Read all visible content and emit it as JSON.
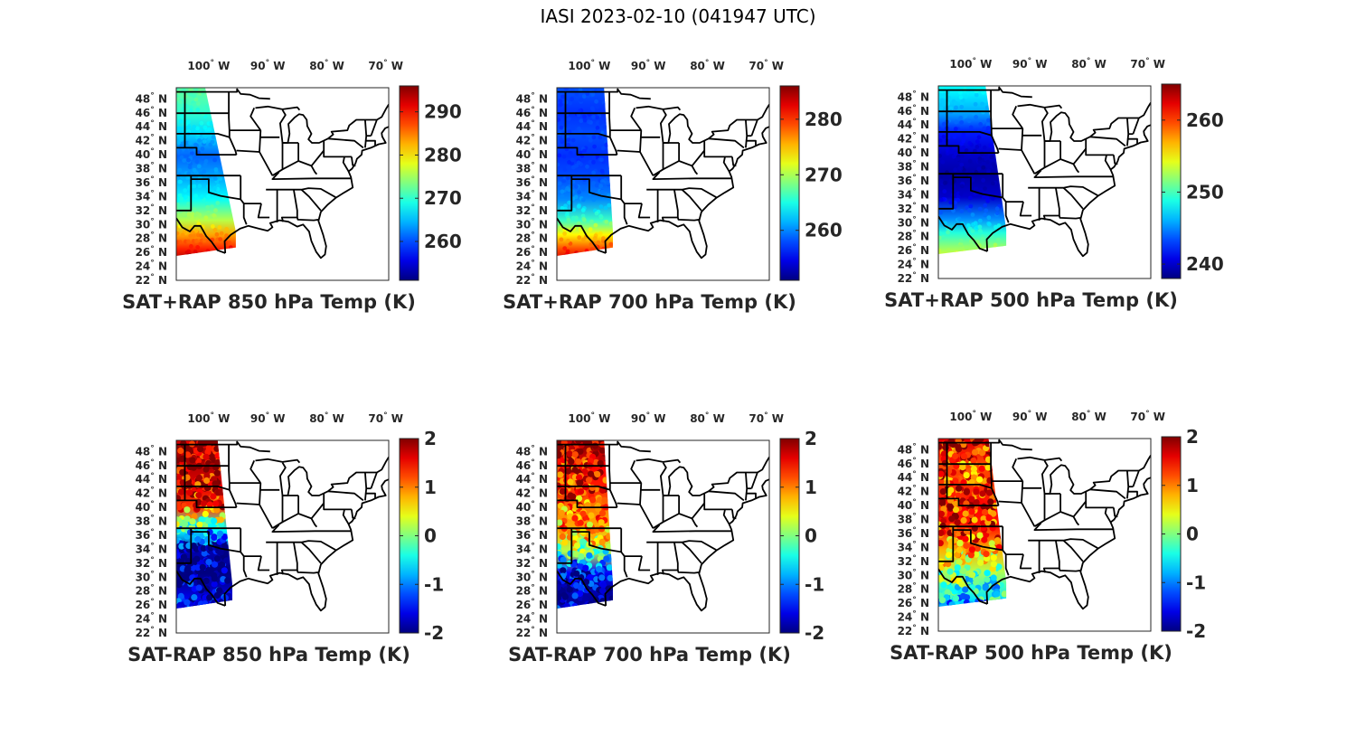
{
  "figure_title": "IASI 2023-02-10 (041947 UTC)",
  "chart_data": [
    {
      "type": "map",
      "id": "p1",
      "title": "SAT+RAP 850 hPa Temp (K)",
      "colormap": "jet",
      "clim": [
        251,
        296
      ],
      "colorbar_ticks": [
        "260",
        "270",
        "280",
        "290"
      ],
      "colorbar_tick_values": [
        260,
        270,
        280,
        290
      ],
      "lon_ticks": [
        "100° W",
        "90° W",
        "80° W",
        "70° W"
      ],
      "lat_ticks": [
        "48° N",
        "46° N",
        "44° N",
        "42° N",
        "40° N",
        "38° N",
        "36° N",
        "34° N",
        "32° N",
        "30° N",
        "28° N",
        "26° N",
        "24° N",
        "22° N"
      ],
      "swath_lon_east_north": -100.6,
      "swath_lon_east_south": -95.4,
      "swath_lat_south": 25.5,
      "field": [
        {
          "lat": 49,
          "value": 272
        },
        {
          "lat": 46,
          "value": 270
        },
        {
          "lat": 43,
          "value": 266
        },
        {
          "lat": 40,
          "value": 261
        },
        {
          "lat": 37,
          "value": 264
        },
        {
          "lat": 34,
          "value": 268
        },
        {
          "lat": 31,
          "value": 276
        },
        {
          "lat": 29,
          "value": 283
        },
        {
          "lat": 27,
          "value": 289
        },
        {
          "lat": 25.5,
          "value": 294
        }
      ]
    },
    {
      "type": "map",
      "id": "p2",
      "title": "SAT+RAP 700 hPa Temp (K)",
      "colormap": "jet",
      "clim": [
        251,
        286
      ],
      "colorbar_ticks": [
        "260",
        "270",
        "280"
      ],
      "colorbar_tick_values": [
        260,
        270,
        280
      ],
      "lon_ticks": [
        "100° W",
        "90° W",
        "80° W",
        "70° W"
      ],
      "lat_ticks": [
        "48° N",
        "46° N",
        "44° N",
        "42° N",
        "40° N",
        "38° N",
        "36° N",
        "34° N",
        "32° N",
        "30° N",
        "28° N",
        "26° N",
        "24° N",
        "22° N"
      ],
      "swath_lon_east_north": -97.5,
      "swath_lon_east_south": -96.0,
      "swath_lat_south": 25.5,
      "field": [
        {
          "lat": 49,
          "value": 258
        },
        {
          "lat": 46,
          "value": 257
        },
        {
          "lat": 43,
          "value": 258
        },
        {
          "lat": 40,
          "value": 257
        },
        {
          "lat": 37,
          "value": 258
        },
        {
          "lat": 34,
          "value": 260
        },
        {
          "lat": 31,
          "value": 266
        },
        {
          "lat": 29,
          "value": 273
        },
        {
          "lat": 27,
          "value": 279
        },
        {
          "lat": 25.5,
          "value": 283
        }
      ]
    },
    {
      "type": "map",
      "id": "p3",
      "title": "SAT+RAP 500 hPa Temp (K)",
      "colormap": "jet",
      "clim": [
        238,
        265
      ],
      "colorbar_ticks": [
        "240",
        "250",
        "260"
      ],
      "colorbar_tick_values": [
        240,
        250,
        260
      ],
      "lon_ticks": [
        "100° W",
        "90° W",
        "80° W",
        "70° W"
      ],
      "lat_ticks": [
        "48° N",
        "46° N",
        "44° N",
        "42° N",
        "40° N",
        "38° N",
        "36° N",
        "34° N",
        "32° N",
        "30° N",
        "28° N",
        "26° N",
        "24° N",
        "22° N"
      ],
      "swath_lon_east_north": -97.5,
      "swath_lon_east_south": -94.0,
      "swath_lat_south": 25.5,
      "field": [
        {
          "lat": 49,
          "value": 248
        },
        {
          "lat": 46,
          "value": 246
        },
        {
          "lat": 43,
          "value": 242
        },
        {
          "lat": 40,
          "value": 240
        },
        {
          "lat": 37,
          "value": 239
        },
        {
          "lat": 34,
          "value": 240
        },
        {
          "lat": 31,
          "value": 245
        },
        {
          "lat": 29,
          "value": 249
        },
        {
          "lat": 27,
          "value": 252
        },
        {
          "lat": 25.5,
          "value": 254
        }
      ]
    },
    {
      "type": "map",
      "id": "p4",
      "title": "SAT-RAP 850 hPa Temp (K)",
      "colormap": "jet",
      "clim": [
        -2,
        2
      ],
      "colorbar_ticks": [
        "2",
        "1",
        "0",
        "-1",
        "-2"
      ],
      "colorbar_tick_values": [
        2,
        1,
        0,
        -1,
        -2
      ],
      "lon_ticks": [
        "100° W",
        "90° W",
        "80° W",
        "70° W"
      ],
      "lat_ticks": [
        "48° N",
        "46° N",
        "44° N",
        "42° N",
        "40° N",
        "38° N",
        "36° N",
        "34° N",
        "32° N",
        "30° N",
        "28° N",
        "26° N",
        "24° N",
        "22° N"
      ],
      "swath_lon_east_north": -98.5,
      "swath_lon_east_south": -96.0,
      "swath_lat_south": 25.5,
      "field": [
        {
          "lat": 49,
          "value": 2
        },
        {
          "lat": 46,
          "value": 1.8
        },
        {
          "lat": 43,
          "value": 1.6
        },
        {
          "lat": 40,
          "value": 1.2
        },
        {
          "lat": 37,
          "value": -0.5
        },
        {
          "lat": 34,
          "value": -1.8
        },
        {
          "lat": 31,
          "value": -2
        },
        {
          "lat": 29,
          "value": -1.8
        },
        {
          "lat": 27,
          "value": -1.5
        },
        {
          "lat": 25.5,
          "value": -1.7
        }
      ]
    },
    {
      "type": "map",
      "id": "p5",
      "title": "SAT-RAP 700 hPa Temp (K)",
      "colormap": "jet",
      "clim": [
        -2,
        2
      ],
      "colorbar_ticks": [
        "2",
        "1",
        "0",
        "-1",
        "-2"
      ],
      "colorbar_tick_values": [
        2,
        1,
        0,
        -1,
        -2
      ],
      "lon_ticks": [
        "100° W",
        "90° W",
        "80° W",
        "70° W"
      ],
      "lat_ticks": [
        "48° N",
        "46° N",
        "44° N",
        "42° N",
        "40° N",
        "38° N",
        "36° N",
        "34° N",
        "32° N",
        "30° N",
        "28° N",
        "26° N",
        "24° N",
        "22° N"
      ],
      "swath_lon_east_north": -97.5,
      "swath_lon_east_south": -96.0,
      "swath_lat_south": 25.5,
      "field": [
        {
          "lat": 49,
          "value": 2
        },
        {
          "lat": 46,
          "value": 1.5
        },
        {
          "lat": 43,
          "value": 1.4
        },
        {
          "lat": 40,
          "value": 1.0
        },
        {
          "lat": 37,
          "value": 0.8
        },
        {
          "lat": 34,
          "value": 0.2
        },
        {
          "lat": 31,
          "value": -1.5
        },
        {
          "lat": 29,
          "value": -1.8
        },
        {
          "lat": 27,
          "value": -1.9
        },
        {
          "lat": 25.5,
          "value": -1.7
        }
      ]
    },
    {
      "type": "map",
      "id": "p6",
      "title": "SAT-RAP 500 hPa Temp (K)",
      "colormap": "jet",
      "clim": [
        -2,
        2
      ],
      "colorbar_ticks": [
        "2",
        "1",
        "0",
        "-1",
        "-2"
      ],
      "colorbar_tick_values": [
        2,
        1,
        0,
        -1,
        -2
      ],
      "lon_ticks": [
        "100° W",
        "90° W",
        "80° W",
        "70° W"
      ],
      "lat_ticks": [
        "48° N",
        "46° N",
        "44° N",
        "42° N",
        "40° N",
        "38° N",
        "36° N",
        "34° N",
        "32° N",
        "30° N",
        "28° N",
        "26° N",
        "24° N",
        "22° N"
      ],
      "swath_lon_east_north": -97.0,
      "swath_lon_east_south": -94.0,
      "swath_lat_south": 25.5,
      "field": [
        {
          "lat": 49,
          "value": 1.6
        },
        {
          "lat": 46,
          "value": 1.2
        },
        {
          "lat": 43,
          "value": 1.3
        },
        {
          "lat": 40,
          "value": 1.5
        },
        {
          "lat": 37,
          "value": 1.4
        },
        {
          "lat": 34,
          "value": 0.8
        },
        {
          "lat": 31,
          "value": 0.2
        },
        {
          "lat": 29,
          "value": -0.2
        },
        {
          "lat": 27,
          "value": -0.6
        },
        {
          "lat": 25.5,
          "value": -1.0
        }
      ]
    }
  ]
}
